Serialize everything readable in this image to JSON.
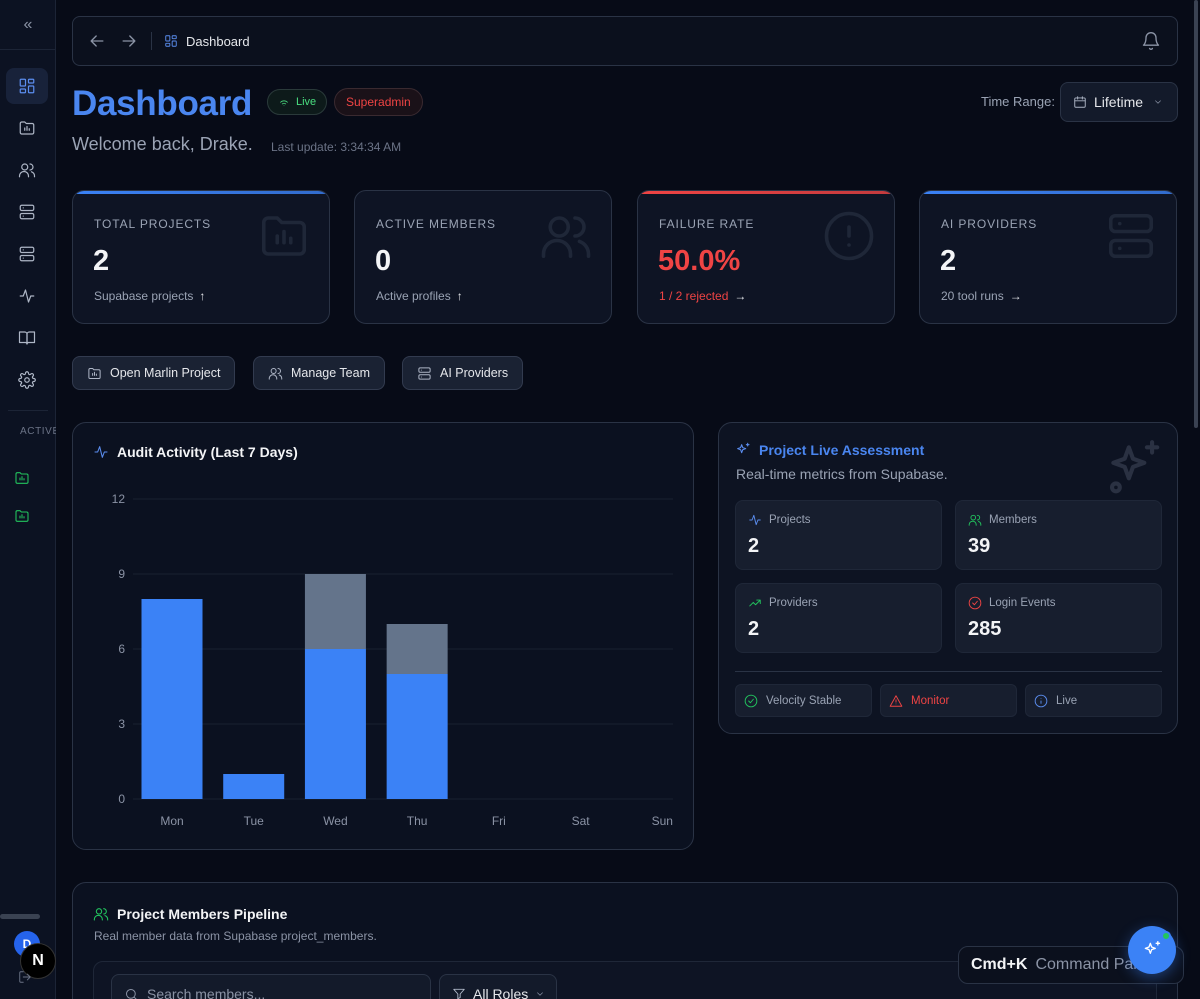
{
  "topbar": {
    "breadcrumb": "Dashboard"
  },
  "header": {
    "title": "Dashboard",
    "live_badge": "Live",
    "role_badge": "Superadmin",
    "welcome": "Welcome back, Drake.",
    "last_update": "Last update: 3:34:34 AM",
    "time_range_label": "Time Range:",
    "time_range_value": "Lifetime"
  },
  "sidebar": {
    "section_label": "ACTIVE PROJECTS",
    "avatar_initial": "D",
    "n_badge": "N",
    "items": [
      {
        "icon": "dashboard-icon"
      },
      {
        "icon": "folder-chart-icon"
      },
      {
        "icon": "users-icon"
      },
      {
        "icon": "server-icon"
      },
      {
        "icon": "server-icon"
      },
      {
        "icon": "activity-icon"
      },
      {
        "icon": "book-icon"
      },
      {
        "icon": "gear-icon"
      }
    ]
  },
  "stats": [
    {
      "label": "TOTAL PROJECTS",
      "value": "2",
      "sub": "Supabase projects",
      "arrow": "↑",
      "accent": "#3b82f6"
    },
    {
      "label": "ACTIVE MEMBERS",
      "value": "0",
      "sub": "Active profiles",
      "arrow": "↑",
      "accent": ""
    },
    {
      "label": "FAILURE RATE",
      "value": "50.0%",
      "sub": "1 / 2 rejected",
      "arrow": "→",
      "accent": "#ef4444"
    },
    {
      "label": "AI PROVIDERS",
      "value": "2",
      "sub": "20 tool runs",
      "arrow": "→",
      "accent": "#3b82f6"
    }
  ],
  "actions": {
    "open_project": "Open Marlin Project",
    "manage_team": "Manage Team",
    "ai_providers": "AI Providers"
  },
  "audit": {
    "title": "Audit Activity (Last 7 Days)"
  },
  "chart_data": {
    "type": "bar",
    "stacked": true,
    "categories": [
      "Mon",
      "Tue",
      "Wed",
      "Thu",
      "Fri",
      "Sat",
      "Sun"
    ],
    "series": [
      {
        "values": [
          8,
          1,
          6,
          5,
          0,
          0,
          0
        ],
        "color": "#3b82f6"
      },
      {
        "values": [
          0,
          0,
          3,
          2,
          0,
          0,
          0
        ],
        "color": "#64748b"
      }
    ],
    "yticks": [
      0,
      3,
      6,
      9,
      12
    ],
    "ylim": [
      0,
      12
    ],
    "grid": true
  },
  "live": {
    "title": "Project Live Assessment",
    "desc": "Real-time metrics from Supabase.",
    "metrics": [
      {
        "label": "Projects",
        "value": "2",
        "icon": "activity-icon",
        "color": "#5b8def"
      },
      {
        "label": "Members",
        "value": "39",
        "icon": "users-icon",
        "color": "#22c55e"
      },
      {
        "label": "Providers",
        "value": "2",
        "icon": "trending-up-icon",
        "color": "#22c55e"
      },
      {
        "label": "Login Events",
        "value": "285",
        "icon": "check-circle-icon",
        "color": "#ef4444"
      }
    ],
    "pills": [
      {
        "label": "Velocity Stable",
        "color": "#22c55e"
      },
      {
        "label": "Monitor",
        "color": "#ef4444"
      },
      {
        "label": "Live",
        "color": "#5b8def"
      }
    ]
  },
  "members": {
    "title": "Project Members Pipeline",
    "desc": "Real member data from Supabase project_members.",
    "search_placeholder": "Search members...",
    "role_filter": "All Roles"
  },
  "command": {
    "shortcut": "Cmd+K",
    "label": "Command Palette"
  }
}
